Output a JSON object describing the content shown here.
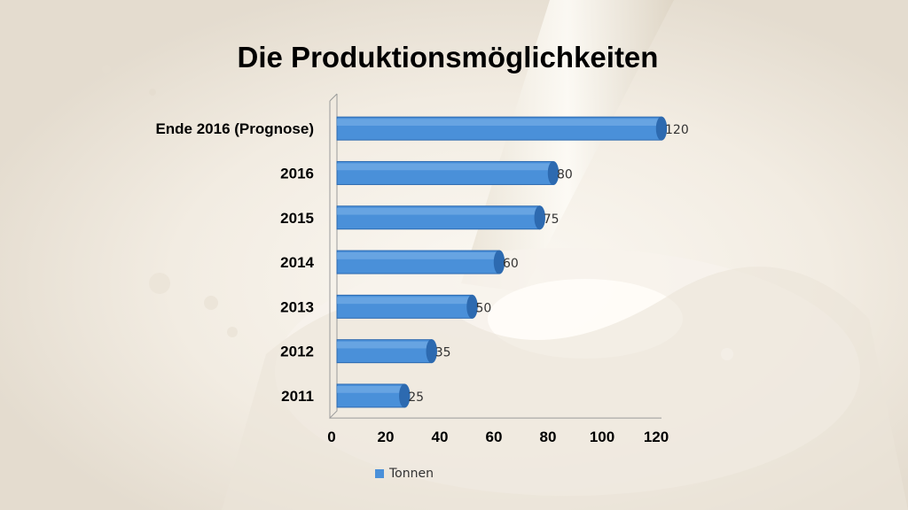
{
  "slide": {
    "title": "Die Produktionsmöglichkeiten"
  },
  "colors": {
    "bar_main": "#4a90d9",
    "bar_dark": "#2d6ab0",
    "bar_light": "#7fb4ea"
  },
  "chart_data": {
    "type": "bar",
    "orientation": "horizontal",
    "title": "",
    "xlabel": "",
    "ylabel": "",
    "xlim": [
      0,
      120
    ],
    "xticks": [
      0,
      20,
      40,
      60,
      80,
      100,
      120
    ],
    "grid": false,
    "legend_position": "bottom",
    "categories": [
      "Ende 2016 (Prognose)",
      "2016",
      "2015",
      "2014",
      "2013",
      "2012",
      "2011"
    ],
    "series": [
      {
        "name": "Tonnen",
        "values": [
          120,
          80,
          75,
          60,
          50,
          35,
          25
        ]
      }
    ]
  }
}
